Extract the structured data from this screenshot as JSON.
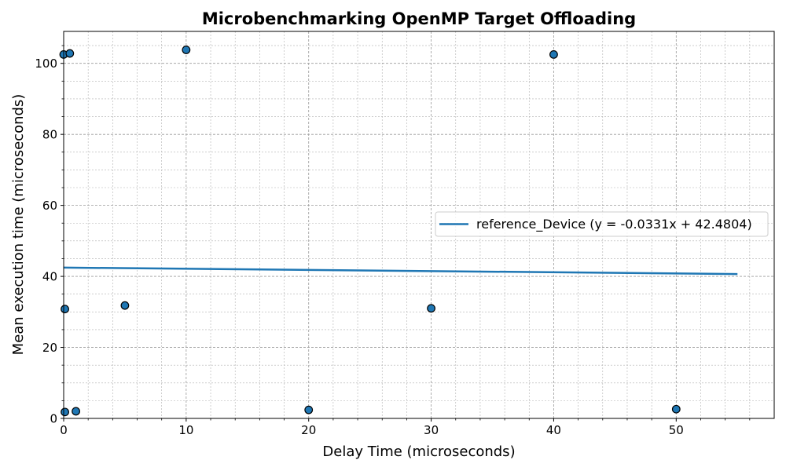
{
  "chart_data": {
    "type": "scatter",
    "title": "Microbenchmarking OpenMP Target Offloading",
    "xlabel": "Delay Time (microseconds)",
    "ylabel": "Mean execution time (microseconds)",
    "xlim": [
      0,
      58
    ],
    "ylim": [
      0,
      109
    ],
    "xticks": [
      0,
      10,
      20,
      30,
      40,
      50
    ],
    "yticks": [
      0,
      20,
      40,
      60,
      80,
      100
    ],
    "x_minor_step": 2,
    "y_minor_step": 5,
    "grid": true,
    "legend_position": "center-right",
    "point_color": "#1f77b4",
    "line_color": "#1f77b4",
    "points": [
      {
        "x": 0,
        "y": 102.5
      },
      {
        "x": 0.5,
        "y": 102.8
      },
      {
        "x": 10,
        "y": 103.8
      },
      {
        "x": 40,
        "y": 102.5
      },
      {
        "x": 0.1,
        "y": 30.8
      },
      {
        "x": 5,
        "y": 31.8
      },
      {
        "x": 30,
        "y": 31.0
      },
      {
        "x": 0.1,
        "y": 1.8
      },
      {
        "x": 1,
        "y": 2.0
      },
      {
        "x": 20,
        "y": 2.4
      },
      {
        "x": 50,
        "y": 2.6
      }
    ],
    "series": [
      {
        "name": "reference_Device (y = -0.0331x + 42.4804)",
        "type": "line",
        "slope": -0.0331,
        "intercept": 42.4804,
        "x_range": [
          0,
          55
        ]
      }
    ]
  }
}
